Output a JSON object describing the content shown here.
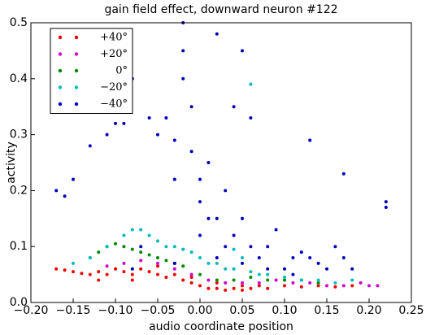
{
  "chart_data": {
    "type": "scatter",
    "title": "gain field effect, downward neuron #122",
    "x_label": "audio coordinate position",
    "y_label": "activity",
    "xlim": [
      -0.2,
      0.25
    ],
    "ylim": [
      0,
      0.5
    ],
    "xticks": [
      {
        "value": -0.2,
        "label": "−0.20"
      },
      {
        "value": -0.15,
        "label": "−0.15"
      },
      {
        "value": -0.1,
        "label": "−0.10"
      },
      {
        "value": -0.05,
        "label": "−0.05"
      },
      {
        "value": 0,
        "label": "0.00"
      },
      {
        "value": 0.05,
        "label": "0.05"
      },
      {
        "value": 0.1,
        "label": "0.10"
      },
      {
        "value": 0.15,
        "label": "0.15"
      },
      {
        "value": 0.2,
        "label": "0.20"
      },
      {
        "value": 0.25,
        "label": "0.25"
      }
    ],
    "yticks": [
      {
        "value": 0,
        "label": "0.0"
      },
      0.1,
      0.2,
      0.3,
      0.4,
      0.5
    ],
    "legend": "upper left",
    "series": [
      {
        "name": "+40°",
        "color": "#ee0000",
        "x": [
          -0.17,
          -0.16,
          -0.15,
          -0.14,
          -0.13,
          -0.12,
          -0.11,
          -0.1,
          -0.09,
          -0.08,
          -0.07,
          -0.06,
          -0.05,
          -0.04,
          -0.03,
          -0.02,
          -0.01,
          0,
          0.01,
          0.02,
          0.03,
          0.04,
          0.05,
          0.06,
          0.07,
          0.08,
          0.1,
          0.12,
          0.14,
          0.16,
          0.18,
          -0.12,
          -0.08,
          -0.05,
          -0.03,
          -0.01,
          0.02,
          0.05
        ],
        "values": [
          0.06,
          0.058,
          0.055,
          0.052,
          0.05,
          0.055,
          0.05,
          0.06,
          0.055,
          0.05,
          0.06,
          0.055,
          0.05,
          0.045,
          0.05,
          0.04,
          0.035,
          0.03,
          0.025,
          0.025,
          0.022,
          0.025,
          0.022,
          0.025,
          0.03,
          0.025,
          0.03,
          0.028,
          0.03,
          0.028,
          0.03,
          0.04,
          0.04,
          0.065,
          0.07,
          0.045,
          0.035,
          0.03
        ]
      },
      {
        "name": "+20°",
        "color": "#cc00cc",
        "x": [
          -0.11,
          -0.09,
          -0.07,
          -0.05,
          -0.03,
          -0.01,
          0.01,
          0.03,
          0.05,
          0.07,
          0.09,
          0.11,
          0.13,
          0.15,
          0.17,
          0.19,
          0.2,
          0.21
        ],
        "values": [
          0.065,
          0.07,
          0.075,
          0.07,
          0.06,
          0.05,
          0.04,
          0.035,
          0.035,
          0.035,
          0.04,
          0.035,
          0.035,
          0.03,
          0.03,
          0.035,
          0.03,
          0.03
        ]
      },
      {
        "name": "0°",
        "color": "#008800",
        "x": [
          -0.13,
          -0.12,
          -0.11,
          -0.1,
          -0.09,
          -0.08,
          -0.07,
          -0.06,
          -0.05,
          -0.04,
          -0.03,
          -0.02,
          0,
          0.02,
          0.04,
          0.06,
          0.08,
          0.1,
          0.12,
          0.14
        ],
        "values": [
          0.08,
          0.09,
          0.1,
          0.105,
          0.1,
          0.095,
          0.09,
          0.085,
          0.08,
          0.075,
          0.07,
          0.065,
          0.05,
          0.04,
          0.04,
          0.045,
          0.04,
          0.04,
          0.04,
          0.035
        ]
      },
      {
        "name": "−20°",
        "color": "#00bbbb",
        "x": [
          -0.15,
          -0.13,
          -0.11,
          -0.09,
          -0.08,
          -0.07,
          -0.06,
          -0.05,
          -0.04,
          -0.03,
          -0.02,
          -0.01,
          0,
          0.01,
          0.02,
          0.03,
          0.04,
          0.05,
          0.06,
          0.07,
          0.08,
          0.1,
          0.12,
          0.14,
          0.16,
          0.18,
          0.06,
          0.04
        ],
        "values": [
          0.07,
          0.08,
          0.1,
          0.12,
          0.13,
          0.13,
          0.12,
          0.11,
          0.1,
          0.1,
          0.095,
          0.09,
          0.08,
          0.07,
          0.07,
          0.06,
          0.06,
          0.08,
          0.055,
          0.05,
          0.05,
          0.045,
          0.04,
          0.04,
          0.035,
          0.04,
          0.39,
          0.095
        ]
      },
      {
        "name": "−40°",
        "color": "#0000bb",
        "x": [
          -0.17,
          -0.16,
          -0.15,
          -0.13,
          -0.11,
          -0.1,
          -0.09,
          -0.08,
          -0.07,
          -0.06,
          -0.05,
          -0.04,
          -0.03,
          -0.03,
          -0.02,
          -0.02,
          -0.02,
          -0.01,
          -0.01,
          0,
          0,
          0,
          0.01,
          0.01,
          0.02,
          0.02,
          0.03,
          0.03,
          0.04,
          0.04,
          0.05,
          0.05,
          0.06,
          0.06,
          0.07,
          0.08,
          0.09,
          0.1,
          0.11,
          0.12,
          0.13,
          0.14,
          0.15,
          0.16,
          0.17,
          0.18,
          0.22,
          0.22,
          0.13,
          0.17,
          -0.08,
          -0.03,
          0.02,
          0.05,
          0.08,
          0.11
        ],
        "values": [
          0.2,
          0.19,
          0.22,
          0.28,
          0.3,
          0.32,
          0.32,
          0.4,
          0.1,
          0.33,
          0.3,
          0.33,
          0.29,
          0.22,
          0.5,
          0.45,
          0.4,
          0.35,
          0.27,
          0.22,
          0.18,
          0.12,
          0.25,
          0.15,
          0.48,
          0.15,
          0.2,
          0.1,
          0.12,
          0.35,
          0.45,
          0.15,
          0.1,
          0.33,
          0.08,
          0.1,
          0.13,
          0.06,
          0.08,
          0.09,
          0.08,
          0.07,
          0.06,
          0.1,
          0.08,
          0.06,
          0.18,
          0.17,
          0.29,
          0.23,
          0.06,
          0.07,
          0.08,
          0.07,
          0.06,
          0.05
        ]
      }
    ]
  }
}
